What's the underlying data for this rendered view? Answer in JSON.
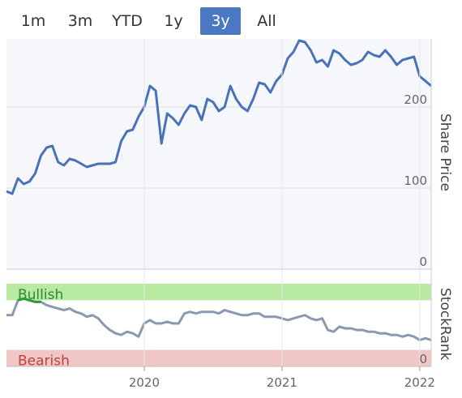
{
  "range_selector": {
    "options": [
      "1m",
      "3m",
      "YTD",
      "1y",
      "3y",
      "All"
    ],
    "selected": "3y"
  },
  "colors": {
    "price_line": "#4a72b8",
    "rank_line": "#8a99b0",
    "rank_line_highlight": "#2f9a3a",
    "bullish_band": "#b8eaa2",
    "bearish_band": "#f0c6c6",
    "bullish_text": "#2f8a2f",
    "bearish_text": "#c04040",
    "plot_bg": "#f6f7fb",
    "active_button": "#4a78c2"
  },
  "chart_data": [
    {
      "type": "line",
      "title": "",
      "ylabel": "Share Price",
      "ylim": [
        0,
        284
      ],
      "yticks": [
        0,
        100,
        200
      ],
      "grid": true,
      "series": [
        {
          "name": "",
          "x": [
            "2019-01",
            "2019-01",
            "2019-02",
            "2019-02",
            "2019-03",
            "2019-03",
            "2019-04",
            "2019-04",
            "2019-05",
            "2019-05",
            "2019-06",
            "2019-06",
            "2019-07",
            "2019-07",
            "2019-08",
            "2019-08",
            "2019-09",
            "2019-09",
            "2019-10",
            "2019-10",
            "2019-11",
            "2019-11",
            "2019-12",
            "2019-12",
            "2020-01",
            "2020-01",
            "2020-02",
            "2020-02",
            "2020-03",
            "2020-03",
            "2020-04",
            "2020-04",
            "2020-05",
            "2020-05",
            "2020-06",
            "2020-06",
            "2020-07",
            "2020-07",
            "2020-08",
            "2020-08",
            "2020-09",
            "2020-09",
            "2020-10",
            "2020-10",
            "2020-11",
            "2020-11",
            "2020-12",
            "2020-12",
            "2021-01",
            "2021-01",
            "2021-02",
            "2021-02",
            "2021-03",
            "2021-03",
            "2021-04",
            "2021-04",
            "2021-05",
            "2021-05",
            "2021-06",
            "2021-06",
            "2021-07",
            "2021-07",
            "2021-08",
            "2021-08",
            "2021-09",
            "2021-09",
            "2021-10",
            "2021-10",
            "2021-11",
            "2021-11",
            "2021-12",
            "2021-12",
            "2022-01",
            "2022-01",
            "2022-02"
          ],
          "values": [
            96,
            93,
            112,
            105,
            108,
            118,
            140,
            150,
            152,
            132,
            128,
            136,
            134,
            130,
            126,
            128,
            130,
            130,
            130,
            132,
            158,
            170,
            172,
            188,
            200,
            226,
            220,
            155,
            192,
            186,
            178,
            192,
            202,
            200,
            184,
            210,
            206,
            195,
            200,
            226,
            210,
            200,
            195,
            210,
            230,
            228,
            218,
            232,
            240,
            260,
            268,
            282,
            280,
            270,
            255,
            258,
            250,
            270,
            266,
            258,
            252,
            254,
            258,
            268,
            264,
            262,
            270,
            262,
            252,
            258,
            260,
            262,
            238,
            232,
            226
          ]
        }
      ]
    },
    {
      "type": "line",
      "title": "",
      "ylabel": "StockRank",
      "ylim": [
        0,
        100
      ],
      "yticks": [
        0
      ],
      "bands": [
        {
          "label": "Bullish",
          "from": 80,
          "to": 100
        },
        {
          "label": "Bearish",
          "from": 0,
          "to": 20
        }
      ],
      "series": [
        {
          "name": "",
          "values": [
            62,
            62,
            80,
            82,
            80,
            78,
            78,
            74,
            72,
            70,
            68,
            70,
            66,
            64,
            60,
            62,
            58,
            50,
            44,
            40,
            38,
            42,
            40,
            36,
            52,
            56,
            52,
            52,
            54,
            52,
            52,
            64,
            66,
            64,
            66,
            66,
            66,
            64,
            68,
            66,
            64,
            62,
            62,
            64,
            64,
            60,
            60,
            60,
            58,
            56,
            58,
            60,
            62,
            58,
            56,
            58,
            44,
            42,
            48,
            46,
            46,
            44,
            44,
            42,
            42,
            40,
            40,
            38,
            38,
            36,
            38,
            36,
            32,
            34,
            32
          ]
        }
      ]
    }
  ],
  "x_axis": {
    "tick_labels": [
      "2020",
      "2021",
      "2022"
    ],
    "tick_dates": [
      "2020-01",
      "2021-01",
      "2022-01"
    ],
    "start": "2019-01",
    "end": "2022-02"
  }
}
